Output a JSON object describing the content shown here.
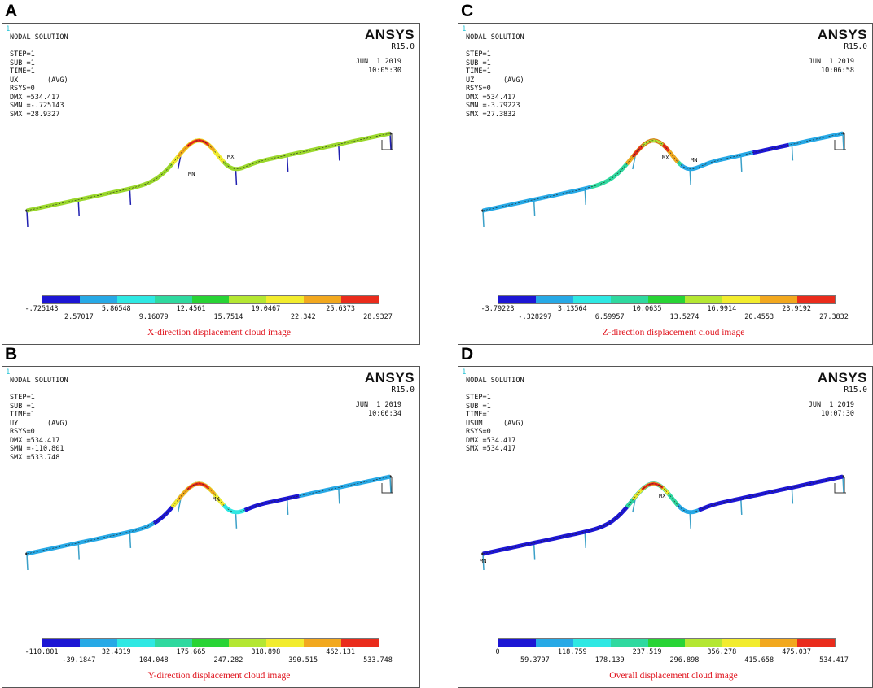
{
  "colors": {
    "legend": [
      "#1d16d4",
      "#27a9e6",
      "#2fe8e3",
      "#2fd99f",
      "#28d435",
      "#b4e732",
      "#f2ec2e",
      "#f2a81e",
      "#ea2c1c"
    ],
    "caption": "#e0141e",
    "version_mark": "#29c4d6"
  },
  "panels": [
    {
      "letter": "A",
      "one": "1",
      "brand": "ANSYS",
      "version": "R15.0",
      "date": "JUN  1 2019",
      "time": "10:05:30",
      "header": [
        "NODAL SOLUTION",
        "",
        "STEP=1",
        "SUB =1",
        "TIME=1",
        "UX       (AVG)",
        "RSYS=0",
        "DMX =534.417",
        "SMN =-.725143",
        "SMX =28.9327"
      ],
      "labels": [
        "MX",
        "MN"
      ],
      "legend_top": [
        "-.725143",
        "5.86548",
        "12.4561",
        "19.0467",
        "25.6373"
      ],
      "legend_bottom": [
        "2.57017",
        "9.16079",
        "15.7514",
        "22.342",
        "28.9327"
      ],
      "caption": "X-direction displacement cloud image"
    },
    {
      "letter": "C",
      "one": "1",
      "brand": "ANSYS",
      "version": "R15.0",
      "date": "JUN  1 2019",
      "time": "10:06:58",
      "header": [
        "NODAL SOLUTION",
        "",
        "STEP=1",
        "SUB =1",
        "TIME=1",
        "UZ       (AVG)",
        "RSYS=0",
        "DMX =534.417",
        "SMN =-3.79223",
        "SMX =27.3832"
      ],
      "labels": [
        "MX",
        "MN"
      ],
      "legend_top": [
        "-3.79223",
        "3.13564",
        "10.0635",
        "16.9914",
        "23.9192"
      ],
      "legend_bottom": [
        "-.328297",
        "6.59957",
        "13.5274",
        "20.4553",
        "27.3832"
      ],
      "caption": "Z-direction displacement cloud image"
    },
    {
      "letter": "B",
      "one": "1",
      "brand": "ANSYS",
      "version": "R15.0",
      "date": "JUN  1 2019",
      "time": "10:06:34",
      "header": [
        "NODAL SOLUTION",
        "",
        "STEP=1",
        "SUB =1",
        "TIME=1",
        "UY       (AVG)",
        "RSYS=0",
        "DMX =534.417",
        "SMN =-110.801",
        "SMX =533.748"
      ],
      "labels": [
        "MX"
      ],
      "legend_top": [
        "-110.801",
        "32.4319",
        "175.665",
        "318.898",
        "462.131"
      ],
      "legend_bottom": [
        "-39.1847",
        "104.048",
        "247.282",
        "390.515",
        "533.748"
      ],
      "caption": "Y-direction displacement cloud image"
    },
    {
      "letter": "D",
      "one": "1",
      "brand": "ANSYS",
      "version": "R15.0",
      "date": "JUN  1 2019",
      "time": "10:07:30",
      "header": [
        "NODAL SOLUTION",
        "",
        "STEP=1",
        "SUB =1",
        "TIME=1",
        "USUM     (AVG)",
        "RSYS=0",
        "DMX =534.417",
        "SMX =534.417"
      ],
      "labels": [
        "MX",
        "MN"
      ],
      "legend_top": [
        "0",
        "118.759",
        "237.519",
        "356.278",
        "475.037"
      ],
      "legend_bottom": [
        "59.3797",
        "178.139",
        "296.898",
        "415.658",
        "534.417"
      ],
      "caption": "Overall displacement cloud image"
    }
  ]
}
